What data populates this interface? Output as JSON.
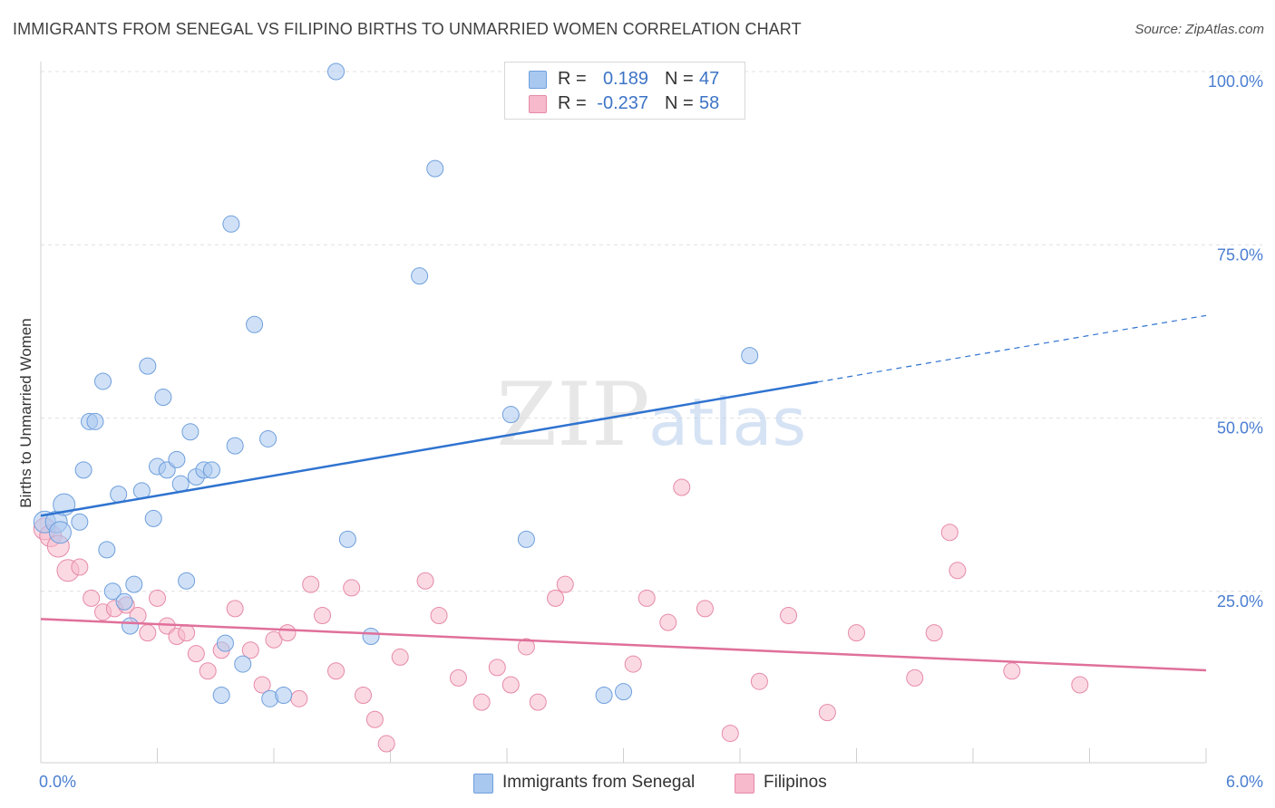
{
  "title": "IMMIGRANTS FROM SENEGAL VS FILIPINO BIRTHS TO UNMARRIED WOMEN CORRELATION CHART",
  "source": "Source: ZipAtlas.com",
  "watermark": {
    "zip": "ZIP",
    "atlas": "atlas"
  },
  "legend": {
    "rows": [
      {
        "r_label": "R =",
        "r_value": "0.189",
        "n_label": "N =",
        "n_value": "47"
      },
      {
        "r_label": "R =",
        "r_value": "-0.237",
        "n_label": "N =",
        "n_value": "58"
      }
    ]
  },
  "bottom_legend": [
    "Immigrants from Senegal",
    "Filipinos"
  ],
  "colors": {
    "senegal_fill": "#a9c8f0",
    "senegal_stroke": "#6f9fdc",
    "senegal_line": "#2f73d0",
    "filipino_fill": "#f7b9cc",
    "filipino_stroke": "#e68aa8",
    "filipino_line": "#e0709a",
    "tick_text": "#4a7ed1",
    "grid": "#e0e0e0"
  },
  "chart_data": {
    "type": "scatter",
    "title": "IMMIGRANTS FROM SENEGAL VS FILIPINO BIRTHS TO UNMARRIED WOMEN CORRELATION CHART",
    "xlabel": "",
    "ylabel": "Births to Unmarried Women",
    "xlim": [
      0,
      6
    ],
    "ylim": [
      0,
      102
    ],
    "x_tick_labels": [
      {
        "value": 0,
        "label": "0.0%"
      },
      {
        "value": 6,
        "label": "6.0%"
      }
    ],
    "y_tick_labels": [
      {
        "value": 25,
        "label": "25.0%"
      },
      {
        "value": 50,
        "label": "50.0%"
      },
      {
        "value": 75,
        "label": "75.0%"
      },
      {
        "value": 100,
        "label": "100.0%"
      }
    ],
    "series": [
      {
        "name": "Immigrants from Senegal",
        "R": 0.189,
        "N": 47,
        "trend": {
          "x0": 0,
          "y0": 35.9,
          "x1": 4.0,
          "y1": 55.2,
          "dashed_to_x": 6.0,
          "dashed_to_y": 64.8
        },
        "points": [
          [
            0.02,
            35.0
          ],
          [
            0.08,
            35.0
          ],
          [
            0.1,
            33.5
          ],
          [
            0.12,
            37.5
          ],
          [
            0.2,
            35.0
          ],
          [
            0.22,
            42.5
          ],
          [
            0.25,
            49.5
          ],
          [
            0.28,
            49.5
          ],
          [
            0.32,
            55.3
          ],
          [
            0.34,
            31.0
          ],
          [
            0.37,
            25.0
          ],
          [
            0.4,
            39.0
          ],
          [
            0.43,
            23.5
          ],
          [
            0.46,
            20.0
          ],
          [
            0.48,
            26.0
          ],
          [
            0.52,
            39.5
          ],
          [
            0.55,
            57.5
          ],
          [
            0.58,
            35.5
          ],
          [
            0.6,
            43.0
          ],
          [
            0.63,
            53.0
          ],
          [
            0.65,
            42.5
          ],
          [
            0.7,
            44.0
          ],
          [
            0.72,
            40.5
          ],
          [
            0.75,
            26.5
          ],
          [
            0.77,
            48.0
          ],
          [
            0.8,
            41.5
          ],
          [
            0.84,
            42.5
          ],
          [
            0.88,
            42.5
          ],
          [
            0.93,
            10.0
          ],
          [
            0.95,
            17.5
          ],
          [
            0.98,
            78.0
          ],
          [
            1.0,
            46.0
          ],
          [
            1.04,
            14.5
          ],
          [
            1.1,
            63.5
          ],
          [
            1.17,
            47.0
          ],
          [
            1.18,
            9.5
          ],
          [
            1.25,
            10.0
          ],
          [
            1.52,
            100.0
          ],
          [
            1.58,
            32.5
          ],
          [
            1.7,
            18.5
          ],
          [
            1.95,
            70.5
          ],
          [
            2.03,
            86.0
          ],
          [
            2.42,
            50.5
          ],
          [
            2.5,
            32.5
          ],
          [
            2.9,
            10.0
          ],
          [
            3.0,
            10.5
          ],
          [
            3.65,
            59.0
          ]
        ]
      },
      {
        "name": "Filipinos",
        "R": -0.237,
        "N": 58,
        "trend": {
          "x0": 0,
          "y0": 21.0,
          "x1": 6.0,
          "y1": 13.6
        },
        "points": [
          [
            0.02,
            34.0
          ],
          [
            0.05,
            33.0
          ],
          [
            0.09,
            31.5
          ],
          [
            0.14,
            28.0
          ],
          [
            0.2,
            28.5
          ],
          [
            0.26,
            24.0
          ],
          [
            0.32,
            22.0
          ],
          [
            0.38,
            22.5
          ],
          [
            0.44,
            23.0
          ],
          [
            0.5,
            21.5
          ],
          [
            0.55,
            19.0
          ],
          [
            0.6,
            24.0
          ],
          [
            0.65,
            20.0
          ],
          [
            0.7,
            18.5
          ],
          [
            0.75,
            19.0
          ],
          [
            0.8,
            16.0
          ],
          [
            0.86,
            13.5
          ],
          [
            0.93,
            16.5
          ],
          [
            1.0,
            22.5
          ],
          [
            1.08,
            16.5
          ],
          [
            1.14,
            11.5
          ],
          [
            1.2,
            18.0
          ],
          [
            1.27,
            19.0
          ],
          [
            1.33,
            9.5
          ],
          [
            1.39,
            26.0
          ],
          [
            1.45,
            21.5
          ],
          [
            1.52,
            13.5
          ],
          [
            1.6,
            25.5
          ],
          [
            1.66,
            10.0
          ],
          [
            1.72,
            6.5
          ],
          [
            1.78,
            3.0
          ],
          [
            1.85,
            15.5
          ],
          [
            1.98,
            26.5
          ],
          [
            2.05,
            21.5
          ],
          [
            2.15,
            12.5
          ],
          [
            2.27,
            9.0
          ],
          [
            2.35,
            14.0
          ],
          [
            2.42,
            11.5
          ],
          [
            2.5,
            17.0
          ],
          [
            2.56,
            9.0
          ],
          [
            2.65,
            24.0
          ],
          [
            2.7,
            26.0
          ],
          [
            3.05,
            14.5
          ],
          [
            3.12,
            24.0
          ],
          [
            3.23,
            20.5
          ],
          [
            3.3,
            40.0
          ],
          [
            3.42,
            22.5
          ],
          [
            3.55,
            4.5
          ],
          [
            3.7,
            12.0
          ],
          [
            3.85,
            21.5
          ],
          [
            4.05,
            7.5
          ],
          [
            4.2,
            19.0
          ],
          [
            4.5,
            12.5
          ],
          [
            4.6,
            19.0
          ],
          [
            4.68,
            33.5
          ],
          [
            4.72,
            28.0
          ],
          [
            5.0,
            13.5
          ],
          [
            5.35,
            11.5
          ]
        ]
      }
    ]
  }
}
